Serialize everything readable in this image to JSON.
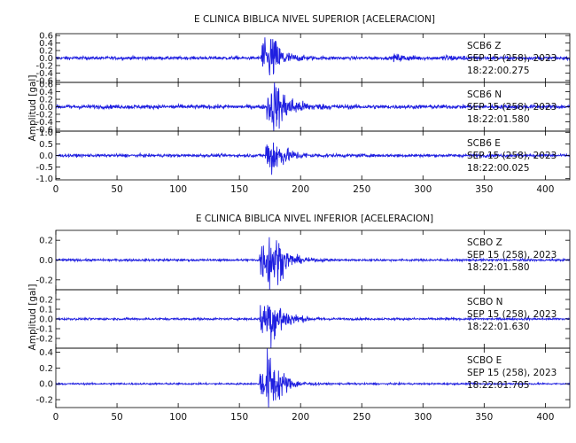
{
  "colors": {
    "trace": "#1f1fe0",
    "axis": "#000000",
    "background": "#ffffff"
  },
  "chart_data": [
    {
      "type": "line",
      "title": "E CLINICA BIBLICA NIVEL SUPERIOR [ACELERACION]",
      "ylabel": "Amplitud [gal]",
      "xlim": [
        0,
        420
      ],
      "xticks": [
        0,
        50,
        100,
        150,
        200,
        250,
        300,
        350,
        400
      ],
      "series": [
        {
          "station": "SCB6",
          "component": "Z",
          "date": "SEP 15 (258), 2023",
          "time": "18:22:00.275",
          "ylim": [
            -0.65,
            0.65
          ],
          "yticks": [
            -0.6,
            -0.4,
            -0.2,
            0.0,
            0.2,
            0.4,
            0.6
          ],
          "yticklabels": [
            "-0.6",
            "-0.4",
            "-0.2",
            "0.0",
            "0.2",
            "0.4",
            "0.6"
          ],
          "noise": 0.04,
          "events": [
            [
              168,
              0.62,
              0.6,
              6
            ],
            [
              175,
              0.55,
              0.9,
              9
            ],
            [
              277,
              0.08,
              2,
              12
            ],
            [
              318,
              0.06,
              3,
              12
            ]
          ]
        },
        {
          "station": "SCB6",
          "component": "N",
          "date": "SEP 15 (258), 2023",
          "time": "18:22:01.580",
          "ylim": [
            -0.65,
            0.65
          ],
          "yticks": [
            -0.6,
            -0.4,
            -0.2,
            0.0,
            0.2,
            0.4,
            0.6
          ],
          "yticklabels": [
            "-0.6",
            "-0.4",
            "-0.2",
            "0.0",
            "0.2",
            "0.4",
            "0.6"
          ],
          "noise": 0.05,
          "events": [
            [
              173,
              0.6,
              1,
              8
            ],
            [
              178,
              0.4,
              1.5,
              14
            ]
          ]
        },
        {
          "station": "SCB6",
          "component": "E",
          "date": "SEP 15 (258), 2023",
          "time": "18:22:00.025",
          "ylim": [
            -1.05,
            1.05
          ],
          "yticks": [
            -1.0,
            -0.5,
            0.0,
            0.5,
            1.0
          ],
          "yticklabels": [
            "-1.0",
            "-0.5",
            "0.0",
            "0.5",
            "1.0"
          ],
          "noise": 0.06,
          "events": [
            [
              172,
              0.95,
              0.8,
              6
            ],
            [
              177,
              0.5,
              1.5,
              12
            ]
          ]
        }
      ]
    },
    {
      "type": "line",
      "title": "E CLINICA BIBLICA NIVEL INFERIOR [ACELERACION]",
      "ylabel": "Amplitud [gal]",
      "xlim": [
        0,
        420
      ],
      "xticks": [
        0,
        50,
        100,
        150,
        200,
        250,
        300,
        350,
        400
      ],
      "series": [
        {
          "station": "SCBO",
          "component": "Z",
          "date": "SEP 15 (258), 2023",
          "time": "18:22:01.580",
          "ylim": [
            -0.3,
            0.3
          ],
          "yticks": [
            -0.2,
            0.0,
            0.2
          ],
          "yticklabels": [
            "-0.2",
            "0.0",
            "0.2"
          ],
          "noise": 0.01,
          "events": [
            [
              167,
              0.26,
              0.6,
              6
            ],
            [
              173,
              0.28,
              1,
              8
            ],
            [
              180,
              0.1,
              1.5,
              10
            ]
          ]
        },
        {
          "station": "SCBO",
          "component": "N",
          "date": "SEP 15 (258), 2023",
          "time": "18:22:01.630",
          "ylim": [
            -0.3,
            0.3
          ],
          "yticks": [
            -0.2,
            -0.1,
            0.0,
            0.1,
            0.2
          ],
          "yticklabels": [
            "-0.2",
            "-0.1",
            "0.0",
            "0.1",
            "0.2"
          ],
          "noise": 0.01,
          "events": [
            [
              167,
              0.2,
              0.6,
              6
            ],
            [
              173,
              0.26,
              1,
              9
            ],
            [
              180,
              0.08,
              1.5,
              10
            ]
          ]
        },
        {
          "station": "SCBO",
          "component": "E",
          "date": "SEP 15 (258), 2023",
          "time": "18:22:01.705",
          "ylim": [
            -0.3,
            0.45
          ],
          "yticks": [
            -0.2,
            0.0,
            0.2,
            0.4
          ],
          "yticklabels": [
            "-0.2",
            "0.0",
            "0.2",
            "0.4"
          ],
          "noise": 0.01,
          "events": [
            [
              167,
              0.25,
              0.6,
              6
            ],
            [
              173,
              0.38,
              1,
              8
            ],
            [
              180,
              0.08,
              1.5,
              10
            ]
          ]
        }
      ]
    }
  ]
}
